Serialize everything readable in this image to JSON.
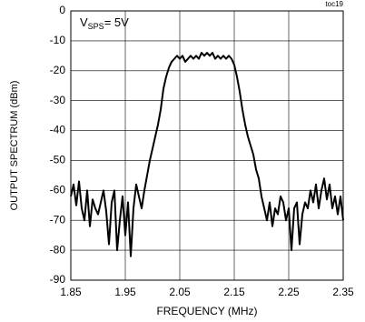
{
  "chart_data": {
    "type": "line",
    "corner_note": "toc19",
    "annotation": {
      "text": "V",
      "sub": "SPS",
      "rest": "= 5V"
    },
    "x_label": "FREQUENCY (MHz)",
    "y_label": "OUTPUT SPECTRUM (dBm)",
    "color": "#000000",
    "grid": true,
    "xlim": [
      1.85,
      2.35
    ],
    "xticks": [
      1.85,
      1.95,
      2.05,
      2.15,
      2.25,
      2.35
    ],
    "ylim": [
      -90,
      0
    ],
    "yticks": [
      0,
      -10,
      -20,
      -30,
      -40,
      -50,
      -60,
      -70,
      -80,
      -90
    ],
    "x": [
      1.85,
      1.855,
      1.86,
      1.865,
      1.87,
      1.875,
      1.88,
      1.885,
      1.89,
      1.895,
      1.9,
      1.905,
      1.91,
      1.915,
      1.92,
      1.925,
      1.93,
      1.935,
      1.94,
      1.945,
      1.95,
      1.955,
      1.96,
      1.965,
      1.97,
      1.975,
      1.98,
      1.985,
      1.99,
      1.995,
      2.0,
      2.005,
      2.01,
      2.015,
      2.02,
      2.025,
      2.03,
      2.035,
      2.04,
      2.045,
      2.05,
      2.055,
      2.06,
      2.065,
      2.07,
      2.075,
      2.08,
      2.085,
      2.09,
      2.095,
      2.1,
      2.105,
      2.11,
      2.115,
      2.12,
      2.125,
      2.13,
      2.135,
      2.14,
      2.145,
      2.15,
      2.155,
      2.16,
      2.165,
      2.17,
      2.175,
      2.18,
      2.185,
      2.19,
      2.195,
      2.2,
      2.205,
      2.21,
      2.215,
      2.22,
      2.225,
      2.23,
      2.235,
      2.24,
      2.245,
      2.25,
      2.255,
      2.26,
      2.265,
      2.27,
      2.275,
      2.28,
      2.285,
      2.29,
      2.295,
      2.3,
      2.305,
      2.31,
      2.315,
      2.32,
      2.325,
      2.33,
      2.335,
      2.34,
      2.345,
      2.35
    ],
    "values": [
      -62,
      -58,
      -65,
      -57,
      -66,
      -70,
      -60,
      -72,
      -63,
      -66,
      -68,
      -64,
      -60,
      -67,
      -78,
      -64,
      -60,
      -80,
      -70,
      -62,
      -75,
      -64,
      -82,
      -66,
      -58,
      -62,
      -66,
      -60,
      -55,
      -50,
      -46,
      -42,
      -38,
      -33,
      -26,
      -22,
      -19,
      -17,
      -16,
      -15,
      -16,
      -15,
      -17,
      -16,
      -15,
      -16,
      -15,
      -16,
      -14,
      -15,
      -14,
      -15,
      -14,
      -16,
      -15,
      -16,
      -15,
      -16,
      -15,
      -16,
      -18,
      -22,
      -27,
      -33,
      -38,
      -42,
      -45,
      -48,
      -53,
      -56,
      -62,
      -66,
      -70,
      -64,
      -72,
      -66,
      -68,
      -62,
      -64,
      -70,
      -66,
      -80,
      -66,
      -64,
      -78,
      -68,
      -64,
      -66,
      -60,
      -64,
      -58,
      -66,
      -60,
      -56,
      -63,
      -58,
      -66,
      -62,
      -68,
      -62,
      -70
    ]
  }
}
